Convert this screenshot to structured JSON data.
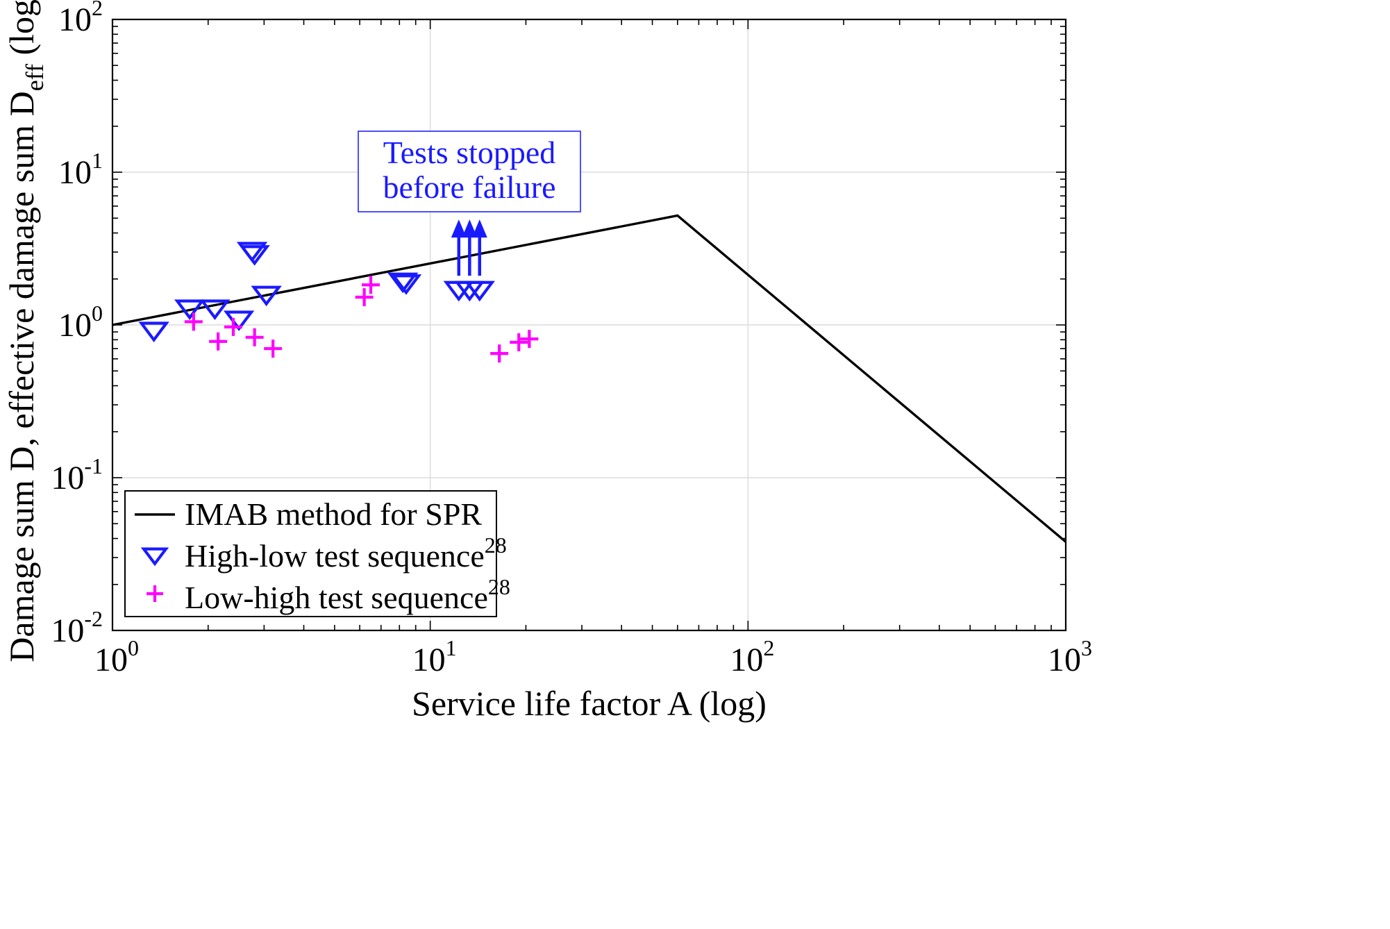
{
  "chart_data": {
    "type": "scatter",
    "xscale": "log",
    "yscale": "log",
    "xlim": [
      1,
      1000
    ],
    "ylim": [
      0.01,
      100
    ],
    "grid": true,
    "legend_position": "bottom-left",
    "xlabel": "Service life factor A (log)",
    "ylabel": {
      "main": "Damage sum D, effective damage sum D",
      "subscript": "eff",
      "suffix": " (log)"
    },
    "x_ticks": [
      {
        "value": 1,
        "base": "10",
        "exp": "0"
      },
      {
        "value": 10,
        "base": "10",
        "exp": "1"
      },
      {
        "value": 100,
        "base": "10",
        "exp": "2"
      },
      {
        "value": 1000,
        "base": "10",
        "exp": "3"
      }
    ],
    "y_ticks": [
      {
        "value": 0.01,
        "base": "10",
        "exp": "-2"
      },
      {
        "value": 0.1,
        "base": "10",
        "exp": "-1"
      },
      {
        "value": 1,
        "base": "10",
        "exp": "0"
      },
      {
        "value": 10,
        "base": "10",
        "exp": "1"
      },
      {
        "value": 100,
        "base": "10",
        "exp": "2"
      }
    ],
    "annotation": {
      "lines": [
        "Tests stopped",
        "before failure"
      ],
      "color": "#1a1aff"
    },
    "series": [
      {
        "name": "IMAB method for SPR",
        "kind": "line",
        "color": "#000000",
        "points": [
          [
            1,
            1.0
          ],
          [
            60,
            5.2
          ],
          [
            1000,
            0.038
          ]
        ]
      },
      {
        "name": "High-low test sequence",
        "superscript": "28",
        "kind": "triangle-down",
        "color": "#1a1aff",
        "points": [
          [
            1.35,
            0.93
          ],
          [
            1.75,
            1.3
          ],
          [
            2.1,
            1.3
          ],
          [
            2.5,
            1.1
          ],
          [
            2.75,
            3.1
          ],
          [
            2.8,
            2.95
          ],
          [
            3.05,
            1.6
          ],
          [
            8.2,
            1.95
          ],
          [
            8.4,
            1.9
          ],
          [
            12.3,
            1.72
          ],
          [
            13.3,
            1.72
          ],
          [
            14.3,
            1.72
          ]
        ]
      },
      {
        "name": "Low-high test sequence",
        "superscript": "28",
        "kind": "plus",
        "color": "#ff00ff",
        "points": [
          [
            1.8,
            1.05
          ],
          [
            2.15,
            0.78
          ],
          [
            2.4,
            0.97
          ],
          [
            2.8,
            0.83
          ],
          [
            3.2,
            0.7
          ],
          [
            6.2,
            1.52
          ],
          [
            6.5,
            1.83
          ],
          [
            16.5,
            0.65
          ],
          [
            19.0,
            0.77
          ],
          [
            20.5,
            0.81
          ]
        ]
      }
    ],
    "arrows": {
      "color": "#1a1aff",
      "x": [
        12.3,
        13.3,
        14.3
      ],
      "from": 2.1,
      "to": 4.7
    }
  }
}
